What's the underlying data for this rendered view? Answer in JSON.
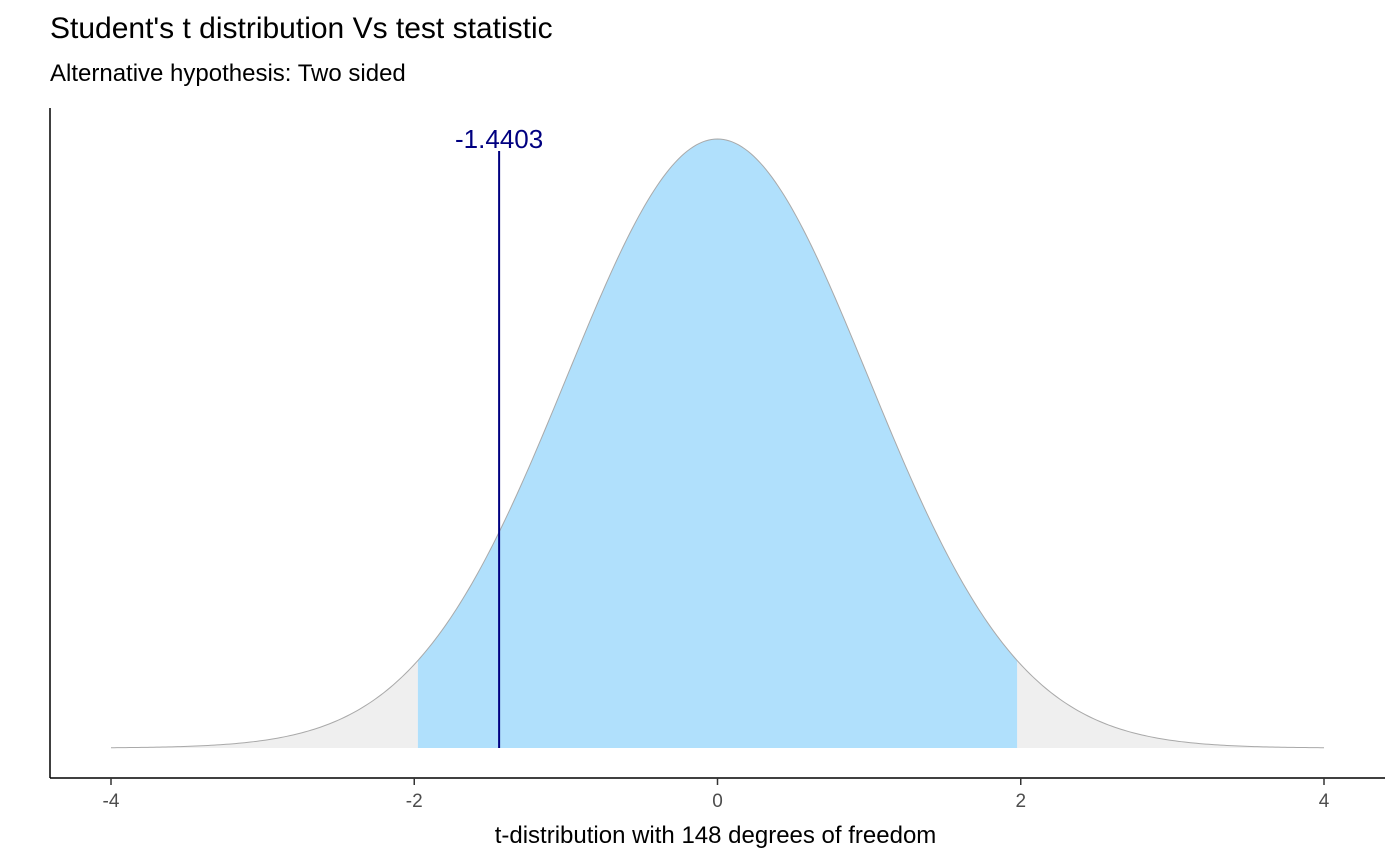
{
  "chart_data": {
    "type": "area",
    "title": "Student's t distribution Vs test statistic",
    "subtitle": "Alternative hypothesis: Two sided",
    "xlabel": "t-distribution with 148 degrees of freedom",
    "ylabel": "",
    "xlim": [
      -4,
      4
    ],
    "x_ticks": [
      -4,
      -2,
      0,
      2,
      4
    ],
    "x_tick_labels": [
      "-4",
      "-2",
      "0",
      "2",
      "4"
    ],
    "degrees_of_freedom": 148,
    "critical_values": [
      -1.976,
      1.976
    ],
    "test_statistic": -1.4403,
    "test_statistic_label": "-1.4403",
    "grid": false,
    "colors": {
      "acceptance_region": "#b0e0fc",
      "rejection_region": "#efefef",
      "curve_outline": "#a9a9a9",
      "test_statistic_line": "#000080",
      "axis": "#000000"
    }
  }
}
